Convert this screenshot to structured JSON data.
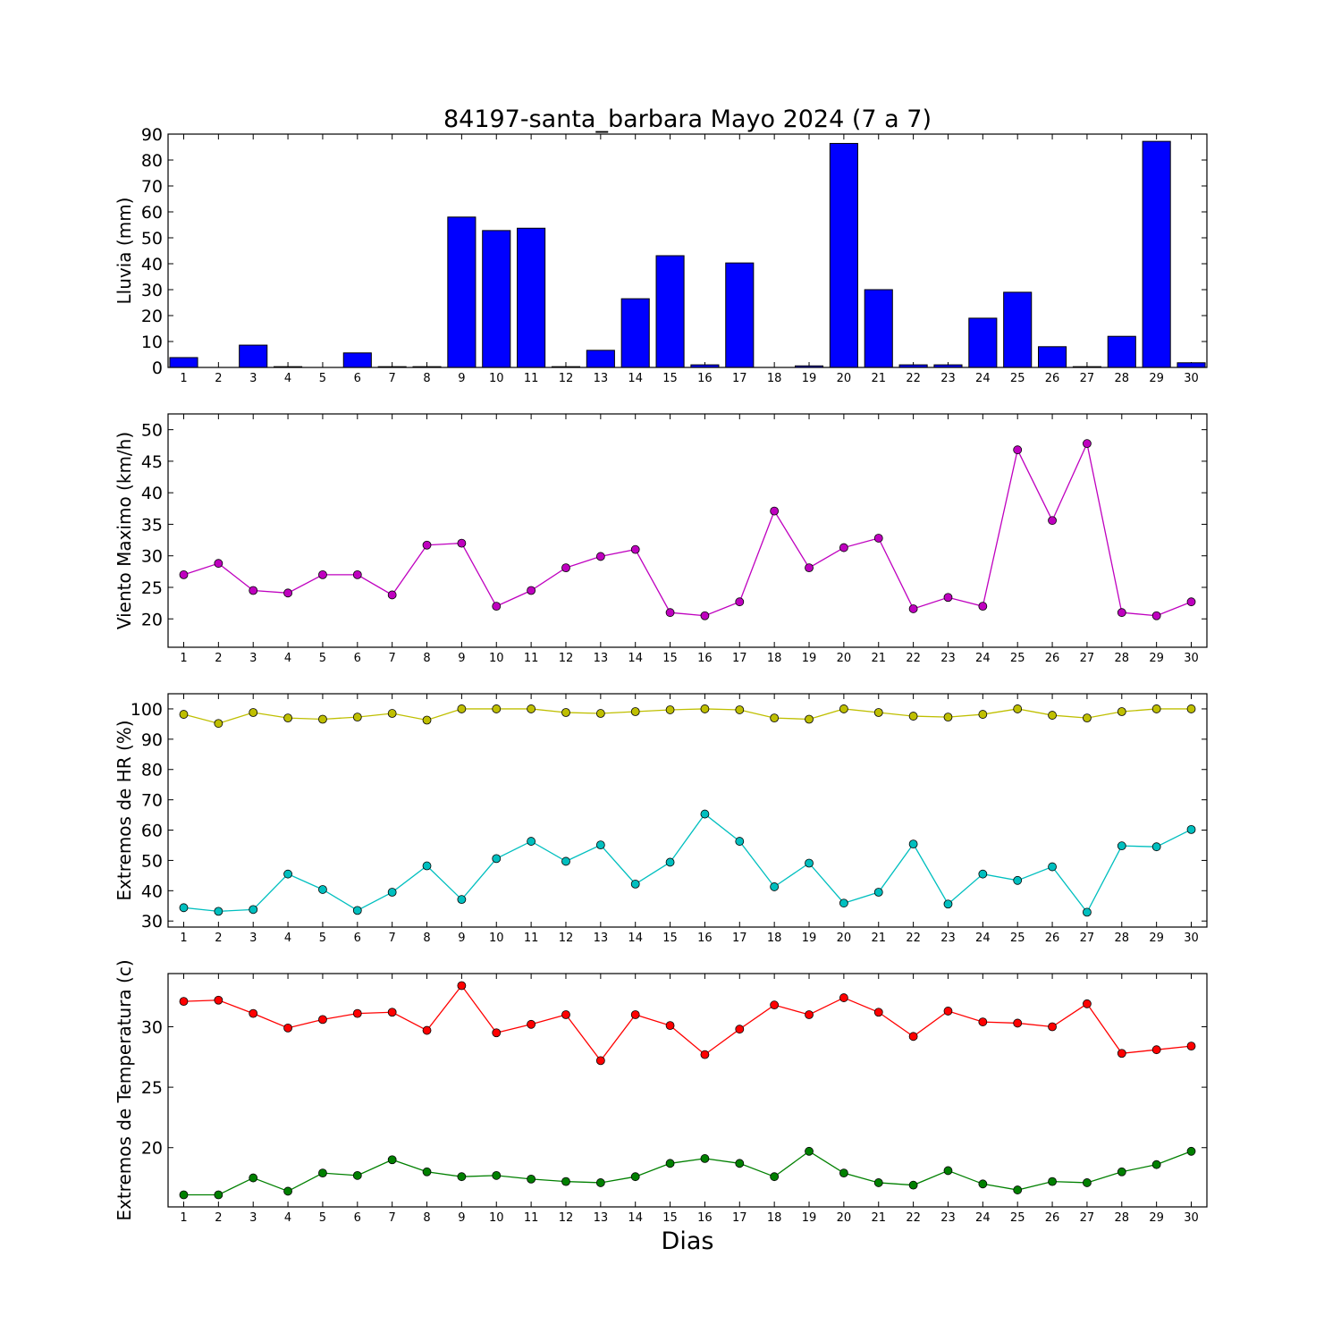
{
  "figure_title": "84197-santa_barbara Mayo 2024  (7 a 7)",
  "xlabel": "Dias",
  "chart_data": [
    {
      "type": "bar",
      "ylabel": "Lluvia (mm)",
      "ylim": [
        0,
        90
      ],
      "yticks": [
        0,
        10,
        20,
        30,
        40,
        50,
        60,
        70,
        80,
        90
      ],
      "categories": [
        "1",
        "2",
        "3",
        "4",
        "5",
        "6",
        "7",
        "8",
        "9",
        "10",
        "11",
        "12",
        "13",
        "14",
        "15",
        "16",
        "17",
        "18",
        "19",
        "20",
        "21",
        "22",
        "23",
        "24",
        "25",
        "26",
        "27",
        "28",
        "29",
        "30"
      ],
      "series": [
        {
          "color": "#0000ff",
          "values": [
            3.8,
            0,
            8.6,
            0.3,
            0,
            5.6,
            0.3,
            0.3,
            58,
            52.8,
            53.7,
            0.3,
            6.6,
            26.5,
            43.1,
            1.0,
            40.3,
            0,
            0.6,
            86.4,
            30.0,
            1.0,
            1.0,
            19.0,
            29.0,
            8.0,
            0.3,
            12.0,
            87.2,
            1.8
          ]
        }
      ]
    },
    {
      "type": "line",
      "ylabel": "Viento Maximo (km/h)",
      "ylim": [
        15.5,
        52.5
      ],
      "yticks": [
        20,
        25,
        30,
        35,
        40,
        45,
        50
      ],
      "x": [
        1,
        2,
        3,
        4,
        5,
        6,
        7,
        8,
        9,
        10,
        11,
        12,
        13,
        14,
        15,
        16,
        17,
        18,
        19,
        20,
        21,
        22,
        23,
        24,
        25,
        26,
        27,
        28,
        29,
        30
      ],
      "series": [
        {
          "color": "#bf00bf",
          "values": [
            27.0,
            28.8,
            24.5,
            24.1,
            27.0,
            27.0,
            23.8,
            31.7,
            32.0,
            22.0,
            24.5,
            28.1,
            29.9,
            31.0,
            21.0,
            20.5,
            22.7,
            37.1,
            28.1,
            31.3,
            32.8,
            21.6,
            23.4,
            22.0,
            46.8,
            35.6,
            47.8,
            21.0,
            20.5,
            22.7
          ]
        }
      ]
    },
    {
      "type": "line",
      "ylabel": "Extremos de HR (%)",
      "ylim": [
        28,
        105
      ],
      "yticks": [
        30,
        40,
        50,
        60,
        70,
        80,
        90,
        100
      ],
      "x": [
        1,
        2,
        3,
        4,
        5,
        6,
        7,
        8,
        9,
        10,
        11,
        12,
        13,
        14,
        15,
        16,
        17,
        18,
        19,
        20,
        21,
        22,
        23,
        24,
        25,
        26,
        27,
        28,
        29,
        30
      ],
      "series": [
        {
          "color": "#bfbf00",
          "values": [
            98.2,
            95.2,
            98.8,
            97.0,
            96.6,
            97.3,
            98.5,
            96.3,
            100,
            100,
            100,
            98.8,
            98.5,
            99.1,
            99.7,
            100,
            99.7,
            97.0,
            96.6,
            100,
            98.8,
            97.6,
            97.3,
            98.2,
            100,
            97.9,
            97.0,
            99.1,
            100,
            100
          ]
        },
        {
          "color": "#00bfbf",
          "values": [
            34.4,
            33.2,
            33.8,
            45.5,
            40.4,
            33.5,
            39.5,
            48.2,
            37.1,
            50.6,
            56.3,
            49.7,
            55.1,
            42.2,
            49.4,
            65.3,
            56.3,
            41.3,
            49.1,
            35.9,
            39.5,
            55.4,
            35.6,
            45.5,
            43.4,
            47.9,
            32.9,
            54.8,
            54.5,
            60.2
          ]
        }
      ]
    },
    {
      "type": "line",
      "ylabel": "Extremos de Temperatura (c)",
      "ylim": [
        15.1,
        34.4
      ],
      "yticks": [
        20,
        25,
        30
      ],
      "x": [
        1,
        2,
        3,
        4,
        5,
        6,
        7,
        8,
        9,
        10,
        11,
        12,
        13,
        14,
        15,
        16,
        17,
        18,
        19,
        20,
        21,
        22,
        23,
        24,
        25,
        26,
        27,
        28,
        29,
        30
      ],
      "series": [
        {
          "color": "#ff0000",
          "values": [
            32.1,
            32.2,
            31.1,
            29.9,
            30.6,
            31.1,
            31.2,
            29.7,
            33.4,
            29.5,
            30.2,
            31.0,
            27.2,
            31.0,
            30.1,
            27.7,
            29.8,
            31.8,
            31.0,
            32.4,
            31.2,
            29.2,
            31.3,
            30.4,
            30.3,
            30.0,
            31.9,
            27.8,
            28.1,
            28.4
          ]
        },
        {
          "color": "#008000",
          "values": [
            16.1,
            16.1,
            17.5,
            16.4,
            17.9,
            17.7,
            19.0,
            18.0,
            17.6,
            17.7,
            17.4,
            17.2,
            17.1,
            17.6,
            18.7,
            19.1,
            18.7,
            17.6,
            19.7,
            17.9,
            17.1,
            16.9,
            18.1,
            17.0,
            16.5,
            17.2,
            17.1,
            18.0,
            18.6,
            19.7
          ]
        }
      ]
    }
  ]
}
